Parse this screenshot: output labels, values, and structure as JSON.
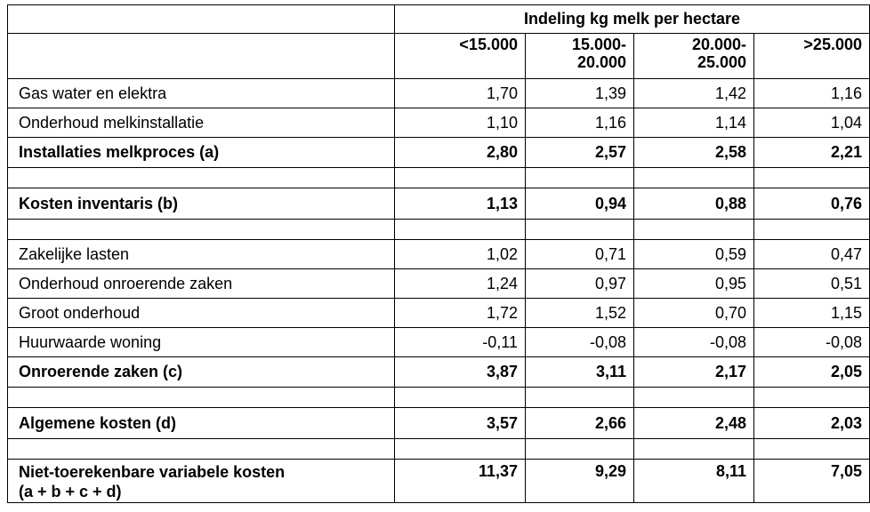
{
  "header": {
    "title": "Indeling kg melk per hectare",
    "columns": [
      [
        "<15.000"
      ],
      [
        "15.000-",
        "20.000"
      ],
      [
        "20.000-",
        "25.000"
      ],
      [
        ">25.000"
      ]
    ]
  },
  "rows": [
    {
      "label": "Gas water en elektra",
      "values": [
        "1,70",
        "1,39",
        "1,42",
        "1,16"
      ]
    },
    {
      "label": "Onderhoud melkinstallatie",
      "values": [
        "1,10",
        "1,16",
        "1,14",
        "1,04"
      ]
    },
    {
      "label": "Installaties melkproces (a)",
      "values": [
        "2,80",
        "2,57",
        "2,58",
        "2,21"
      ]
    },
    {
      "label": "Kosten inventaris (b)",
      "values": [
        "1,13",
        "0,94",
        "0,88",
        "0,76"
      ]
    },
    {
      "label": "Zakelijke lasten",
      "values": [
        "1,02",
        "0,71",
        "0,59",
        "0,47"
      ]
    },
    {
      "label": "Onderhoud onroerende zaken",
      "values": [
        "1,24",
        "0,97",
        "0,95",
        "0,51"
      ]
    },
    {
      "label": "Groot onderhoud",
      "values": [
        "1,72",
        "1,52",
        "0,70",
        "1,15"
      ]
    },
    {
      "label": "Huurwaarde woning",
      "values": [
        "-0,11",
        "-0,08",
        "-0,08",
        "-0,08"
      ]
    },
    {
      "label": "Onroerende zaken (c)",
      "values": [
        "3,87",
        "3,11",
        "2,17",
        "2,05"
      ]
    },
    {
      "label": "Algemene kosten (d)",
      "values": [
        "3,57",
        "2,66",
        "2,48",
        "2,03"
      ]
    },
    {
      "label": [
        "Niet-toerekenbare variabele kosten",
        "(a + b + c + d)"
      ],
      "values": [
        "11,37",
        "9,29",
        "8,11",
        "7,05"
      ]
    }
  ]
}
